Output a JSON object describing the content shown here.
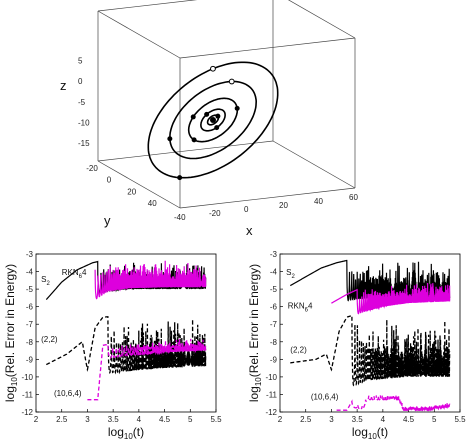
{
  "chart_data": [
    {
      "type": "scatter",
      "projection": "3d",
      "xlabel": "x",
      "ylabel": "y",
      "zlabel": "z",
      "xticks": [
        "-40",
        "-20",
        "0",
        "20",
        "40",
        "60"
      ],
      "yticks": [
        "-20",
        "0",
        "20",
        "40"
      ],
      "zticks": [
        "-15",
        "-10",
        "-5",
        "0",
        "5"
      ],
      "xlim": [
        -40,
        60
      ],
      "ylim": [
        -20,
        40
      ],
      "zlim": [
        -15,
        5
      ],
      "box": true,
      "grid": false,
      "orbits": [
        {
          "semi_major": 4,
          "color": "#000000"
        },
        {
          "semi_major": 9,
          "color": "#000000"
        },
        {
          "semi_major": 18,
          "color": "#000000"
        },
        {
          "semi_major": 32,
          "color": "#000000"
        },
        {
          "semi_major": 48,
          "color": "#000000"
        }
      ],
      "bodies": [
        {
          "orbit": 0,
          "angle": 0.0
        },
        {
          "orbit": 1,
          "angle": 1.7
        },
        {
          "orbit": 1,
          "angle": 4.6
        },
        {
          "orbit": 2,
          "angle": 0.35
        },
        {
          "orbit": 2,
          "angle": 2.9
        },
        {
          "orbit": 2,
          "angle": 4.2
        },
        {
          "orbit": 3,
          "angle": 5.6
        },
        {
          "orbit": 3,
          "angle": 3.55
        },
        {
          "orbit": 4,
          "angle": 2.55
        },
        {
          "orbit": 4,
          "angle": 5.15
        }
      ]
    },
    {
      "type": "line",
      "xlabel": "log10(t)",
      "ylabel": "log10(Rel. Error in Energy)",
      "xlim": [
        2,
        5.5
      ],
      "ylim": [
        -12,
        -3
      ],
      "xticks": [
        "2",
        "2.5",
        "3",
        "3.5",
        "4",
        "4.5",
        "5",
        "5.5"
      ],
      "yticks": [
        "-3",
        "-4",
        "-5",
        "-6",
        "-7",
        "-8",
        "-9",
        "-10",
        "-11",
        "-12"
      ],
      "series": [
        {
          "name": "S2",
          "color": "#000000",
          "dash": "solid",
          "envelope": [
            [
              2.2,
              -5.6
            ],
            [
              2.5,
              -4.6
            ],
            [
              2.8,
              -3.9
            ],
            [
              3.1,
              -3.5
            ],
            [
              3.4,
              -3.3
            ],
            [
              3.8,
              -3.2
            ],
            [
              4.5,
              -3.2
            ],
            [
              5.3,
              -3.2
            ]
          ],
          "oscillation": {
            "start": 3.2,
            "depth": 1.8,
            "wiggles": 30
          }
        },
        {
          "name": "RKN64",
          "color": "#dd00dd",
          "dash": "solid",
          "envelope": [
            [
              3.15,
              -3.9
            ],
            [
              3.4,
              -3.4
            ],
            [
              3.8,
              -3.25
            ],
            [
              4.5,
              -3.2
            ],
            [
              5.3,
              -3.2
            ]
          ],
          "oscillation": {
            "start": 3.15,
            "depth": 1.7,
            "wiggles": 34
          }
        },
        {
          "name": "(2,2)",
          "color": "#000000",
          "dash": "dashed",
          "envelope": [
            [
              2.2,
              -9.3
            ],
            [
              2.6,
              -8.7
            ],
            [
              2.9,
              -8.0
            ],
            [
              3.0,
              -9.6
            ],
            [
              3.15,
              -7.2
            ],
            [
              3.3,
              -6.6
            ],
            [
              3.7,
              -6.5
            ],
            [
              4.5,
              -6.3
            ],
            [
              5.3,
              -6.2
            ]
          ],
          "oscillation": {
            "start": 3.4,
            "depth": 3.2,
            "wiggles": 26
          }
        },
        {
          "name": "(10,6,4)",
          "color": "#dd00dd",
          "dash": "dashed",
          "envelope": [
            [
              3.0,
              -11.3
            ],
            [
              3.2,
              -11.3
            ],
            [
              3.3,
              -8.2
            ],
            [
              3.7,
              -8.0
            ],
            [
              4.5,
              -7.8
            ],
            [
              5.3,
              -7.7
            ]
          ],
          "oscillation": {
            "start": 3.4,
            "depth": 0.8,
            "wiggles": 18
          }
        }
      ],
      "annotations": [
        {
          "text": "S",
          "sub": "2",
          "x": 2.1,
          "y": -4.6
        },
        {
          "text": "RKN",
          "sub": "6",
          "after": "4",
          "x": 2.5,
          "y": -4.2
        },
        {
          "text": "(2,2)",
          "x": 2.1,
          "y": -8.0
        },
        {
          "text": "(10,6,4)",
          "x": 2.35,
          "y": -11.1
        }
      ]
    },
    {
      "type": "line",
      "xlabel": "log10(t)",
      "ylabel": "log10(Rel. Error in Energy)",
      "xlim": [
        2,
        5.5
      ],
      "ylim": [
        -12,
        -3
      ],
      "xticks": [
        "2",
        "2.5",
        "3",
        "3.5",
        "4",
        "4.5",
        "5",
        "5.5"
      ],
      "yticks": [
        "-3",
        "-4",
        "-5",
        "-6",
        "-7",
        "-8",
        "-9",
        "-10",
        "-11",
        "-12"
      ],
      "series": [
        {
          "name": "S2",
          "color": "#000000",
          "dash": "solid",
          "envelope": [
            [
              2.2,
              -4.8
            ],
            [
              2.5,
              -4.3
            ],
            [
              2.8,
              -3.8
            ],
            [
              3.1,
              -3.5
            ],
            [
              3.4,
              -3.3
            ],
            [
              3.8,
              -3.2
            ],
            [
              4.5,
              -3.2
            ],
            [
              5.3,
              -3.2
            ]
          ],
          "oscillation": {
            "start": 3.3,
            "depth": 2.3,
            "wiggles": 36
          }
        },
        {
          "name": "RKN64",
          "color": "#dd00dd",
          "dash": "solid",
          "envelope": [
            [
              3.0,
              -5.8
            ],
            [
              3.3,
              -5.3
            ],
            [
              3.6,
              -4.9
            ],
            [
              4.0,
              -4.6
            ],
            [
              4.5,
              -4.4
            ],
            [
              5.3,
              -4.3
            ]
          ],
          "oscillation": {
            "start": 3.5,
            "depth": 1.4,
            "wiggles": 34
          }
        },
        {
          "name": "(2,2)",
          "color": "#000000",
          "dash": "dashed",
          "envelope": [
            [
              2.2,
              -9.2
            ],
            [
              2.7,
              -9.0
            ],
            [
              2.9,
              -8.7
            ],
            [
              3.0,
              -9.6
            ],
            [
              3.15,
              -7.4
            ],
            [
              3.3,
              -6.6
            ],
            [
              3.7,
              -6.2
            ],
            [
              4.5,
              -6.0
            ],
            [
              5.3,
              -6.0
            ]
          ],
          "oscillation": {
            "start": 3.4,
            "depth": 4.0,
            "wiggles": 30
          }
        },
        {
          "name": "(10,6,4)",
          "color": "#dd00dd",
          "dash": "dashed",
          "envelope": [
            [
              3.1,
              -11.9
            ],
            [
              3.3,
              -11.9
            ],
            [
              3.4,
              -11.4
            ],
            [
              3.6,
              -11.6
            ],
            [
              3.7,
              -11.0
            ],
            [
              4.3,
              -11.0
            ],
            [
              4.4,
              -11.6
            ],
            [
              4.9,
              -11.6
            ],
            [
              5.3,
              -11.4
            ]
          ],
          "oscillation": {
            "start": 3.4,
            "depth": 0.3,
            "wiggles": 14
          }
        }
      ],
      "annotations": [
        {
          "text": "S",
          "sub": "2",
          "x": 2.12,
          "y": -4.2
        },
        {
          "text": "RKN",
          "sub": "6",
          "after": "4",
          "x": 2.15,
          "y": -6.1
        },
        {
          "text": "(2,2)",
          "x": 2.2,
          "y": -8.6
        },
        {
          "text": "(10,6,4)",
          "x": 2.6,
          "y": -11.3
        }
      ]
    }
  ]
}
